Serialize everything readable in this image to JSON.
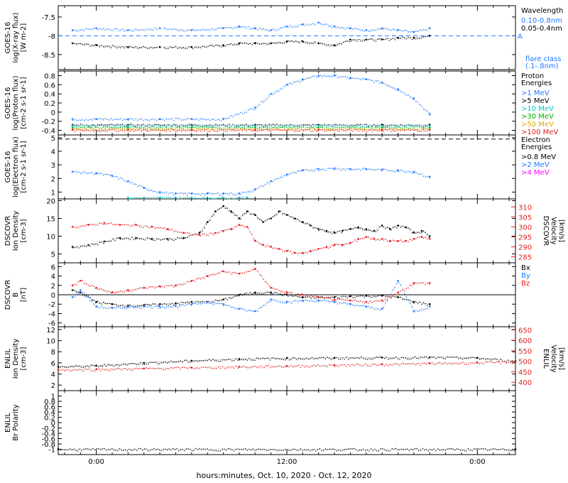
{
  "x_axis": {
    "label": "hours:minutes, Oct. 10, 2020 - Oct. 12, 2020",
    "start_hour": -2.4,
    "end_hour": 26.4,
    "ticks": [
      {
        "hour": 0,
        "label": "0:00"
      },
      {
        "hour": 12,
        "label": "12:00"
      },
      {
        "hour": 24,
        "label": "0:00"
      }
    ]
  },
  "colors": {
    "black": "#000000",
    "blue": "#1e78ff",
    "green": "#00c8c8",
    "cyan": "#00c8c8",
    "lime": "#00b400",
    "orange": "#e1aa00",
    "red": "#e11e1e",
    "magenta": "#ff00ff"
  },
  "chart_data": [
    {
      "name": "xray",
      "type": "scatter",
      "ylabel": [
        "GOES-16",
        "log(X-ray flux)",
        "[W m-2]"
      ],
      "ylim": [
        -8.9,
        -7.2
      ],
      "yticks": [
        -7.5,
        -8.0,
        -8.5
      ],
      "threshold": {
        "value": -8.0,
        "label": "A"
      },
      "legend": {
        "title": [
          "Wavelength"
        ],
        "entries": [
          {
            "label": "0.10-0.8nm",
            "color": "blue"
          },
          {
            "label": "0.05-0.4nm",
            "color": "black"
          }
        ],
        "footer": [
          "flare class",
          "(.1-.8nm)"
        ]
      },
      "series": [
        {
          "label": "0.10-0.8nm",
          "color": "blue",
          "x": [
            -1.5,
            0,
            2,
            4,
            6,
            8,
            9,
            10,
            11,
            12,
            13,
            14,
            15,
            16,
            17,
            18,
            19,
            20,
            21
          ],
          "y": [
            -7.85,
            -7.8,
            -7.85,
            -7.8,
            -7.85,
            -7.8,
            -7.75,
            -7.8,
            -7.85,
            -7.75,
            -7.7,
            -7.65,
            -7.75,
            -7.8,
            -7.85,
            -7.8,
            -7.85,
            -7.9,
            -7.8
          ]
        },
        {
          "label": "0.05-0.4nm",
          "color": "black",
          "x": [
            -1.5,
            0,
            2,
            4,
            6,
            8,
            9,
            10,
            11,
            12,
            13,
            14,
            15,
            16,
            17,
            18,
            19,
            20,
            21
          ],
          "y": [
            -8.2,
            -8.25,
            -8.3,
            -8.3,
            -8.3,
            -8.25,
            -8.2,
            -8.2,
            -8.2,
            -8.15,
            -8.15,
            -8.2,
            -8.25,
            -8.1,
            -8.1,
            -8.1,
            -8.05,
            -8.05,
            -8.0
          ]
        }
      ],
      "gaps": [
        [
          3.9,
          4.2
        ],
        [
          13.8,
          14.0
        ]
      ]
    },
    {
      "name": "proton",
      "type": "scatter",
      "ylabel": [
        "GOES-16",
        "log(Proton flux)",
        "[cm-2 s-1 sr-1]"
      ],
      "ylim": [
        -0.5,
        0.9
      ],
      "yticks": [
        0.8,
        0.6,
        0.4,
        0.2,
        0.0,
        -0.2,
        -0.4
      ],
      "legend": {
        "title": [
          "Proton",
          "Energies"
        ],
        "entries": [
          {
            "label": ">1 MeV",
            "color": "blue"
          },
          {
            "label": ">5 MeV",
            "color": "black"
          },
          {
            "label": ">10 MeV",
            "color": "green"
          },
          {
            "label": ">30 MeV",
            "color": "lime"
          },
          {
            "label": ">50 MeV",
            "color": "orange"
          },
          {
            "label": ">100 MeV",
            "color": "red"
          }
        ]
      },
      "series": [
        {
          "label": ">1 MeV",
          "color": "blue",
          "x": [
            -1.5,
            0,
            2,
            4,
            6,
            8,
            10,
            11,
            12,
            13,
            14,
            15,
            16,
            17,
            18,
            19,
            20,
            21
          ],
          "y": [
            -0.15,
            -0.15,
            -0.15,
            -0.15,
            -0.15,
            -0.15,
            0.1,
            0.4,
            0.6,
            0.72,
            0.8,
            0.8,
            0.75,
            0.72,
            0.65,
            0.5,
            0.3,
            -0.05
          ]
        },
        {
          "label": ">5 MeV",
          "color": "black",
          "x": [
            -1.5,
            2,
            6,
            10,
            14,
            18,
            21
          ],
          "y": [
            -0.28,
            -0.28,
            -0.28,
            -0.28,
            -0.28,
            -0.28,
            -0.28
          ]
        },
        {
          "label": ">10 MeV",
          "color": "green",
          "x": [
            -1.5,
            2,
            6,
            10,
            14,
            18,
            21
          ],
          "y": [
            -0.3,
            -0.3,
            -0.3,
            -0.3,
            -0.3,
            -0.3,
            -0.3
          ]
        },
        {
          "label": ">30 MeV",
          "color": "lime",
          "x": [
            -1.5,
            2,
            6,
            10,
            14,
            18,
            21
          ],
          "y": [
            -0.34,
            -0.34,
            -0.34,
            -0.34,
            -0.34,
            -0.34,
            -0.34
          ]
        },
        {
          "label": ">50 MeV",
          "color": "orange",
          "x": [
            -1.5,
            2,
            6,
            10,
            14,
            18,
            21
          ],
          "y": [
            -0.37,
            -0.37,
            -0.37,
            -0.37,
            -0.37,
            -0.37,
            -0.37
          ]
        },
        {
          "label": ">100 MeV",
          "color": "red",
          "x": [
            -1.5,
            2,
            6,
            10,
            14,
            18,
            21
          ],
          "y": [
            -0.39,
            -0.39,
            -0.39,
            -0.39,
            -0.39,
            -0.39,
            -0.39
          ]
        }
      ]
    },
    {
      "name": "electron",
      "type": "scatter",
      "ylabel": [
        "GOES-16",
        "log(Electron flux)",
        "[cm-2 s-1 sr-1]"
      ],
      "ylim": [
        0.5,
        5.2
      ],
      "yticks": [
        5,
        4,
        3,
        2,
        1
      ],
      "threshold": {
        "value": 4.9,
        "label": ""
      },
      "legend": {
        "title": [
          "Electron",
          "Energies"
        ],
        "entries": [
          {
            "label": ">0.8 MeV",
            "color": "black"
          },
          {
            "label": ">2 MeV",
            "color": "blue"
          },
          {
            "label": ">4 MeV",
            "color": "magenta"
          }
        ]
      },
      "series": [
        {
          "label": ">2 MeV",
          "color": "blue",
          "x": [
            -1.5,
            0,
            1,
            2,
            3,
            4,
            5,
            6,
            7,
            8,
            9,
            10,
            11,
            12,
            13,
            14,
            15,
            16,
            17,
            18,
            19,
            20,
            21
          ],
          "y": [
            2.5,
            2.4,
            2.2,
            1.8,
            1.3,
            1.0,
            0.9,
            0.9,
            0.9,
            0.9,
            0.9,
            1.2,
            1.8,
            2.3,
            2.6,
            2.7,
            2.75,
            2.7,
            2.7,
            2.65,
            2.6,
            2.5,
            2.1
          ]
        },
        {
          "label": ">0.8 MeV",
          "color": "cyan",
          "x": [
            2,
            4,
            6,
            8,
            9.5
          ],
          "y": [
            0.6,
            0.6,
            0.6,
            0.6,
            0.6
          ]
        }
      ]
    },
    {
      "name": "dscovr-density",
      "type": "scatter",
      "ylabel": [
        "DSCOVR",
        "Ion Density",
        "[cm-3]"
      ],
      "ylim": [
        2.5,
        20.5
      ],
      "yticks": [
        20,
        15,
        10,
        5
      ],
      "ylabel_right": [
        "DSCOVR",
        "Velocity",
        "[km/s]"
      ],
      "ylim_right": [
        282,
        314
      ],
      "yticks_right": [
        310,
        305,
        300,
        295,
        290,
        285
      ],
      "series": [
        {
          "label": "Ion Density",
          "color": "black",
          "axis": "left",
          "x": [
            -1.5,
            -0.5,
            0.5,
            1.5,
            2.5,
            3.5,
            4.5,
            5.5,
            6.5,
            7,
            7.5,
            8,
            8.5,
            9,
            9.5,
            10,
            10.5,
            11,
            11.5,
            12,
            12.5,
            13,
            13.5,
            14,
            14.5,
            15,
            15.5,
            16,
            16.5,
            17,
            17.5,
            18,
            18.5,
            19,
            19.5,
            20,
            20.5,
            21
          ],
          "y": [
            7,
            7.5,
            8.5,
            9.5,
            9.5,
            9.3,
            9.2,
            9.5,
            11,
            14,
            17,
            18.5,
            17,
            15,
            17,
            16,
            14,
            15,
            17,
            16,
            15,
            14,
            13,
            12,
            11.5,
            11,
            11.5,
            12,
            12.5,
            12,
            11.5,
            13,
            12,
            13,
            12.5,
            11,
            11.5,
            10
          ]
        },
        {
          "label": "Velocity",
          "color": "red",
          "axis": "right",
          "x": [
            -1.5,
            -0.5,
            0.5,
            1.5,
            2.5,
            3.5,
            4.5,
            5.5,
            6.5,
            7.5,
            8,
            8.5,
            9,
            9.5,
            10,
            10.5,
            11,
            11.5,
            12,
            12.5,
            13,
            13.5,
            14,
            14.5,
            15,
            15.5,
            16,
            16.5,
            17,
            17.5,
            18,
            18.5,
            19,
            19.5,
            20,
            20.5,
            21
          ],
          "y": [
            300,
            301,
            302,
            301,
            301,
            300,
            299,
            297,
            296,
            297,
            298,
            299,
            301,
            300,
            293,
            291,
            290,
            289,
            288,
            287,
            287,
            288,
            289,
            290,
            291,
            291,
            292,
            294,
            295,
            294,
            294,
            293,
            293,
            293,
            294,
            295,
            294
          ]
        }
      ]
    },
    {
      "name": "dscovr-bfield",
      "type": "scatter",
      "ylabel": [
        "DSCOVR",
        "B",
        "[nT]"
      ],
      "ylim": [
        -6.8,
        6.8
      ],
      "yticks": [
        6,
        4,
        2,
        0,
        -2,
        -4,
        -6
      ],
      "zero_line": true,
      "legend": {
        "title": [],
        "entries": [
          {
            "label": "Bx",
            "color": "black"
          },
          {
            "label": "By",
            "color": "blue"
          },
          {
            "label": "Bz",
            "color": "red"
          }
        ]
      },
      "series": [
        {
          "label": "Bx",
          "color": "black",
          "x": [
            -1.5,
            -1,
            0,
            1,
            2,
            3,
            4,
            5,
            6,
            7,
            8,
            9,
            10,
            11,
            12,
            13,
            14,
            15,
            16,
            17,
            18,
            19,
            20,
            21
          ],
          "y": [
            1,
            0.5,
            -1.5,
            -2,
            -2.3,
            -2.2,
            -2.0,
            -1.8,
            -1.5,
            -1.5,
            -1,
            0,
            0.5,
            0.5,
            0,
            -0.5,
            -0.5,
            -0.5,
            -0.3,
            -0.2,
            -0.2,
            -0.5,
            -1.5,
            -2.0
          ]
        },
        {
          "label": "By",
          "color": "blue",
          "x": [
            -1.5,
            -1,
            0,
            1,
            2,
            3,
            4,
            5,
            6,
            7,
            8,
            9,
            10,
            11,
            12,
            13,
            14,
            15,
            16,
            17,
            18,
            19,
            20,
            21
          ],
          "y": [
            -0.5,
            1,
            -2.5,
            -2.8,
            -2.6,
            -2.5,
            -2.5,
            -2.4,
            -2.0,
            -1.5,
            -2,
            -3,
            -3.5,
            -1,
            -1.5,
            -1.2,
            -1.2,
            -1.5,
            -2.0,
            -2.5,
            -3,
            3,
            -3.5,
            -2.5
          ]
        },
        {
          "label": "Bz",
          "color": "red",
          "x": [
            -1.5,
            -1,
            0,
            1,
            2,
            3,
            4,
            5,
            6,
            7,
            8,
            9,
            10,
            11,
            12,
            13,
            14,
            15,
            16,
            17,
            18,
            19,
            20,
            21
          ],
          "y": [
            2,
            3,
            1.5,
            0.5,
            1,
            1.5,
            1.8,
            2,
            3,
            4,
            5,
            4.5,
            5.5,
            1.5,
            0.5,
            0,
            -0.5,
            -1,
            -1.2,
            -1.5,
            -1.2,
            0.5,
            2.5,
            2.5
          ]
        }
      ]
    },
    {
      "name": "enlil-density",
      "type": "scatter",
      "ylabel": [
        "ENLIL",
        "Ion Density",
        "[cm-3]"
      ],
      "ylim": [
        1.0,
        12.5
      ],
      "yticks": [
        12,
        10,
        8,
        6,
        4,
        2
      ],
      "ylabel_right": [
        "ENLIL",
        "Velocity",
        "[km/s]"
      ],
      "ylim_right": [
        360,
        665
      ],
      "yticks_right": [
        650,
        600,
        550,
        500,
        450,
        400
      ],
      "series": [
        {
          "label": "Ion Density",
          "color": "black",
          "axis": "left",
          "x": [
            -2.4,
            0,
            3,
            6,
            9,
            12,
            15,
            18,
            21,
            24,
            26.4
          ],
          "y": [
            5.3,
            5.5,
            6.0,
            6.4,
            6.7,
            6.85,
            6.9,
            6.95,
            7.0,
            6.9,
            6.3
          ]
        },
        {
          "label": "Velocity",
          "color": "red",
          "axis": "right",
          "x": [
            -2.4,
            0,
            3,
            6,
            9,
            12,
            15,
            18,
            21,
            24,
            26.4
          ],
          "y": [
            460,
            462,
            466,
            470,
            474,
            478,
            482,
            486,
            490,
            494,
            498
          ]
        }
      ]
    },
    {
      "name": "enlil-polarity",
      "type": "scatter",
      "ylabel": [
        "ENLIL",
        "Br Polarity"
      ],
      "ylim": [
        -1.2,
        1.2
      ],
      "yticks": [
        1.0,
        0.8,
        0.6,
        0.4,
        0.2,
        0.0,
        -0.2,
        -0.4,
        -0.6,
        -0.8,
        -1.0
      ],
      "series": [
        {
          "label": "Br Polarity",
          "color": "black",
          "x": [
            -2.4,
            26.4
          ],
          "y": [
            -1.0,
            -1.0
          ]
        }
      ]
    }
  ]
}
